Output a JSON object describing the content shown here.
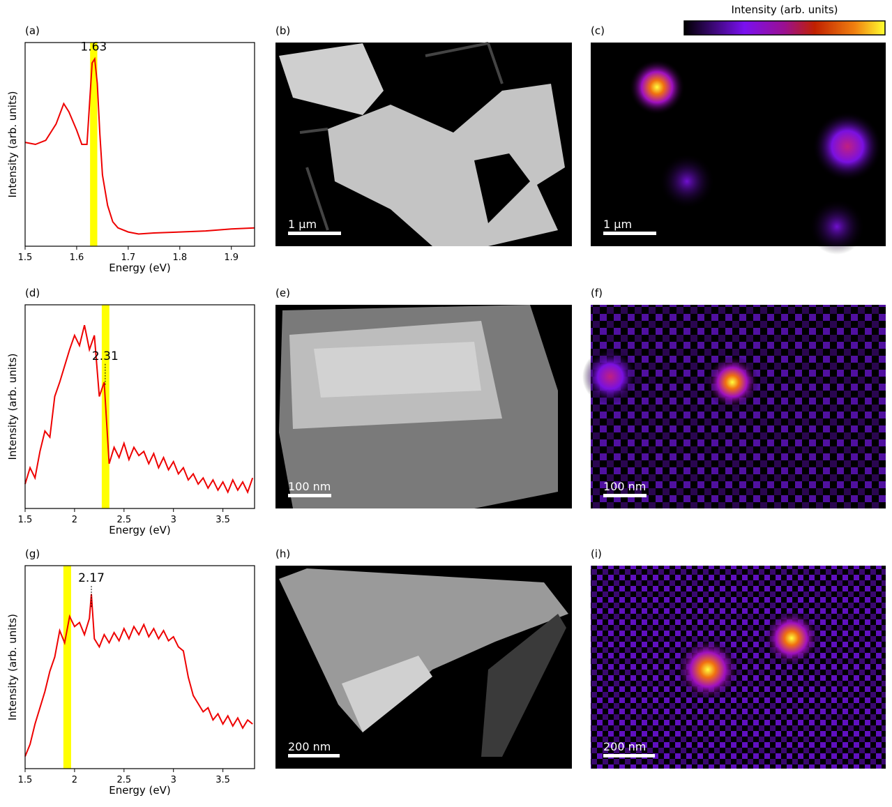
{
  "chart_data": [
    {
      "type": "line",
      "panel_label": "(a)",
      "xlabel": "Energy (eV)",
      "ylabel": "Intensity (arb. units)",
      "color": "#ee0000",
      "xlim": [
        1.5,
        1.945
      ],
      "xticks": [
        1.5,
        1.6,
        1.7,
        1.8,
        1.9
      ],
      "ylim": [
        0,
        1
      ],
      "highlight": [
        1.626,
        1.64
      ],
      "highlight_color": "#ffff00",
      "annotation": {
        "text": "1.63",
        "x": 1.633,
        "y": 0.92,
        "leader": false
      },
      "x": [
        1.5,
        1.52,
        1.54,
        1.56,
        1.575,
        1.585,
        1.6,
        1.61,
        1.62,
        1.625,
        1.63,
        1.635,
        1.64,
        1.645,
        1.65,
        1.66,
        1.67,
        1.68,
        1.7,
        1.72,
        1.75,
        1.8,
        1.85,
        1.9,
        1.945
      ],
      "values": [
        0.51,
        0.5,
        0.52,
        0.6,
        0.7,
        0.66,
        0.57,
        0.5,
        0.5,
        0.7,
        0.9,
        0.92,
        0.8,
        0.55,
        0.35,
        0.2,
        0.12,
        0.09,
        0.07,
        0.06,
        0.065,
        0.07,
        0.075,
        0.085,
        0.09
      ]
    },
    {
      "type": "line",
      "panel_label": "(d)",
      "xlabel": "Energy (eV)",
      "ylabel": "Intensity (arb. units)",
      "color": "#ee0000",
      "xlim": [
        1.5,
        3.82
      ],
      "xticks": [
        1.5,
        2.0,
        2.5,
        3.0,
        3.5
      ],
      "ylim": [
        0,
        1
      ],
      "highlight": [
        2.275,
        2.352
      ],
      "highlight_color": "#ffff00",
      "annotation": {
        "text": "2.31",
        "x": 2.31,
        "y": 0.6,
        "leader": true
      },
      "x": [
        1.5,
        1.55,
        1.6,
        1.65,
        1.7,
        1.75,
        1.8,
        1.85,
        1.9,
        1.95,
        2.0,
        2.05,
        2.1,
        2.15,
        2.2,
        2.25,
        2.3,
        2.35,
        2.4,
        2.45,
        2.5,
        2.55,
        2.6,
        2.65,
        2.7,
        2.75,
        2.8,
        2.85,
        2.9,
        2.95,
        3.0,
        3.05,
        3.1,
        3.15,
        3.2,
        3.25,
        3.3,
        3.35,
        3.4,
        3.45,
        3.5,
        3.55,
        3.6,
        3.65,
        3.7,
        3.75,
        3.8
      ],
      "values": [
        0.12,
        0.2,
        0.15,
        0.28,
        0.38,
        0.35,
        0.55,
        0.62,
        0.7,
        0.78,
        0.85,
        0.8,
        0.9,
        0.78,
        0.85,
        0.55,
        0.62,
        0.22,
        0.3,
        0.25,
        0.32,
        0.24,
        0.3,
        0.26,
        0.28,
        0.22,
        0.27,
        0.2,
        0.25,
        0.19,
        0.23,
        0.17,
        0.2,
        0.14,
        0.17,
        0.12,
        0.15,
        0.1,
        0.14,
        0.09,
        0.13,
        0.08,
        0.14,
        0.09,
        0.13,
        0.08,
        0.15
      ]
    },
    {
      "type": "line",
      "panel_label": "(g)",
      "xlabel": "Energy (eV)",
      "ylabel": "Intensity (arb. units)",
      "color": "#ee0000",
      "xlim": [
        1.5,
        3.82
      ],
      "xticks": [
        1.5,
        2.0,
        2.5,
        3.0,
        3.5
      ],
      "ylim": [
        0,
        1
      ],
      "highlight": [
        1.887,
        1.965
      ],
      "highlight_color": "#ffff00",
      "annotation": {
        "text": "2.17",
        "x": 2.17,
        "y": 0.79,
        "leader": true
      },
      "x": [
        1.5,
        1.55,
        1.6,
        1.65,
        1.7,
        1.75,
        1.8,
        1.85,
        1.9,
        1.95,
        2.0,
        2.05,
        2.1,
        2.15,
        2.17,
        2.2,
        2.25,
        2.3,
        2.35,
        2.4,
        2.45,
        2.5,
        2.55,
        2.6,
        2.65,
        2.7,
        2.75,
        2.8,
        2.85,
        2.9,
        2.95,
        3.0,
        3.05,
        3.1,
        3.15,
        3.2,
        3.25,
        3.3,
        3.35,
        3.4,
        3.45,
        3.5,
        3.55,
        3.6,
        3.65,
        3.7,
        3.75,
        3.8
      ],
      "values": [
        0.06,
        0.12,
        0.22,
        0.3,
        0.38,
        0.48,
        0.55,
        0.68,
        0.62,
        0.75,
        0.7,
        0.72,
        0.66,
        0.74,
        0.86,
        0.64,
        0.6,
        0.66,
        0.62,
        0.67,
        0.63,
        0.69,
        0.64,
        0.7,
        0.66,
        0.71,
        0.65,
        0.69,
        0.64,
        0.68,
        0.63,
        0.65,
        0.6,
        0.58,
        0.45,
        0.36,
        0.32,
        0.28,
        0.3,
        0.24,
        0.27,
        0.22,
        0.26,
        0.21,
        0.25,
        0.2,
        0.24,
        0.22
      ]
    }
  ],
  "images": [
    {
      "panel_label": "(b)",
      "scale_bar": "1 µm"
    },
    {
      "panel_label": "(c)",
      "scale_bar": "1 µm"
    },
    {
      "panel_label": "(e)",
      "scale_bar": "100 nm"
    },
    {
      "panel_label": "(f)",
      "scale_bar": "100 nm"
    },
    {
      "panel_label": "(h)",
      "scale_bar": "200 nm"
    },
    {
      "panel_label": "(i)",
      "scale_bar": "200 nm"
    }
  ],
  "colorbar": {
    "label": "Intensity (arb. units)"
  }
}
